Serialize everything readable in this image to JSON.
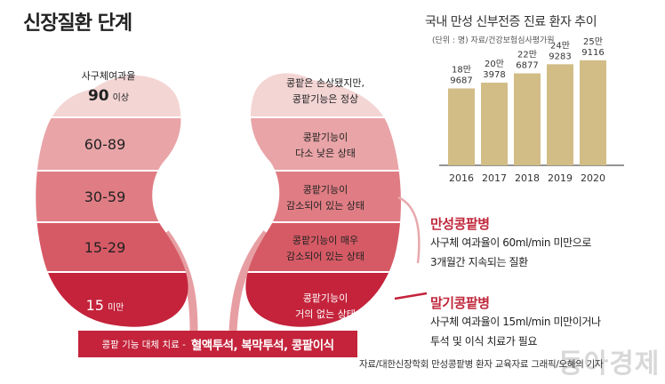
{
  "title": "신장질환 단계",
  "stages": [
    {
      "left_caption": "사구체여과율",
      "left_value": "90",
      "left_suffix": "이상",
      "right_lines": [
        "콩팥은 손상됐지만,",
        "콩팥기능은 정상"
      ],
      "color": "#f3d5d4"
    },
    {
      "left_value": "60-89",
      "right_lines": [
        "콩팥기능이",
        "다소 낮은 상태"
      ],
      "color": "#e9a4a7"
    },
    {
      "left_value": "30-59",
      "right_lines": [
        "콩팥기능이",
        "감소되어 있는 상태"
      ],
      "color": "#e07d84"
    },
    {
      "left_value": "15-29",
      "right_lines": [
        "콩팥기능이 매우",
        "감소되어 있는 상태"
      ],
      "color": "#d65a65"
    },
    {
      "left_value": "15",
      "left_suffix": "미만",
      "right_lines": [
        "콩팥기능이",
        "거의 없는 상태"
      ],
      "color": "#c4233b"
    }
  ],
  "bottom_bar": {
    "small": "콩팥 기능 대체 치료 -",
    "big": "혈액투석, 복막투석, 콩팥이식"
  },
  "chronic": {
    "title": "만성콩팥병",
    "line1": "사구체 여과율이 60ml/min 미만으로",
    "line2": "3개월간 지속되는 질환"
  },
  "terminal": {
    "title": "말기콩팥병",
    "line1": "사구체 여과율이 15ml/min 미만이거나",
    "line2": "투석 및 이식 치료가 필요"
  },
  "chart_header": {
    "title": "국내 만성 신부전증 진료 환자 추이",
    "unit": "(단위 : 명) 자료/건강보험심사평가원"
  },
  "chart_data": {
    "type": "bar",
    "title": "국내 만성 신부전증 진료 환자 추이",
    "unit": "(단위 : 명) 자료/건강보험심사평가원",
    "categories": [
      "2016",
      "2017",
      "2018",
      "2019",
      "2020"
    ],
    "values": [
      189687,
      203978,
      226877,
      249283,
      259116
    ],
    "value_labels": [
      [
        "18만",
        "9687"
      ],
      [
        "20만",
        "3978"
      ],
      [
        "22만",
        "6877"
      ],
      [
        "24만",
        "9283"
      ],
      [
        "25만",
        "9116"
      ]
    ],
    "ylim": [
      0,
      285000
    ],
    "grid": false,
    "bar_color": "#d2bd86"
  },
  "credit": "자료/대한신장학회 만성콩팥병 환자 교육자료   그래픽/오혜의 기자",
  "watermark": "동아경제"
}
